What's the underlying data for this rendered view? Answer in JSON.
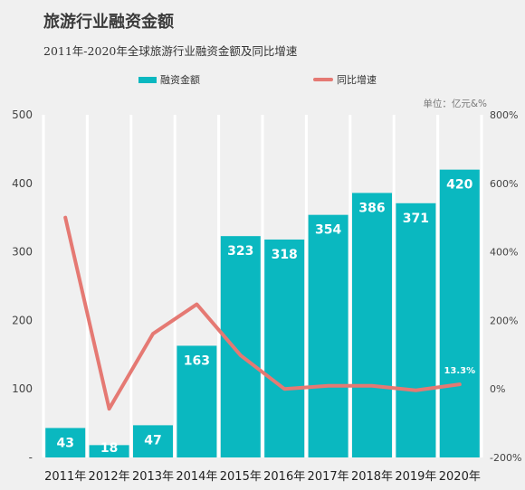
{
  "title": "旅游行业融资金额",
  "subtitle": "2011年-2020年全球旅游行业融资金额及同比增速",
  "unit": "单位：亿元&%",
  "legend": {
    "bar": "融资金额",
    "line": "同比增速"
  },
  "chart_data": {
    "type": "bar+line",
    "categories": [
      "2011年",
      "2012年",
      "2013年",
      "2014年",
      "2015年",
      "2016年",
      "2017年",
      "2018年",
      "2019年",
      "2020年"
    ],
    "series": [
      {
        "name": "融资金额",
        "type": "bar",
        "axis": "left",
        "values": [
          43,
          18,
          47,
          163,
          323,
          318,
          354,
          386,
          371,
          420
        ],
        "labels": [
          "43",
          "18",
          "47",
          "163",
          "323",
          "318",
          "354",
          "386",
          "371",
          "420"
        ],
        "color": "#0ab8c0"
      },
      {
        "name": "同比增速",
        "type": "line",
        "axis": "right",
        "values": [
          500,
          -58,
          161,
          247,
          98,
          0,
          9,
          9,
          -4,
          13.3
        ],
        "labels": [
          "",
          "",
          "",
          "",
          "",
          "",
          "",
          "",
          "",
          "13.3%"
        ],
        "color": "#e57973"
      }
    ],
    "y_left": {
      "range": [
        0,
        500
      ],
      "ticks": [
        "-",
        "100",
        "200",
        "300",
        "400",
        "500"
      ]
    },
    "y_right": {
      "range": [
        -200,
        800
      ],
      "ticks": [
        "-200%",
        "0%",
        "200%",
        "400%",
        "600%",
        "800%"
      ]
    },
    "grid": "vertical"
  }
}
